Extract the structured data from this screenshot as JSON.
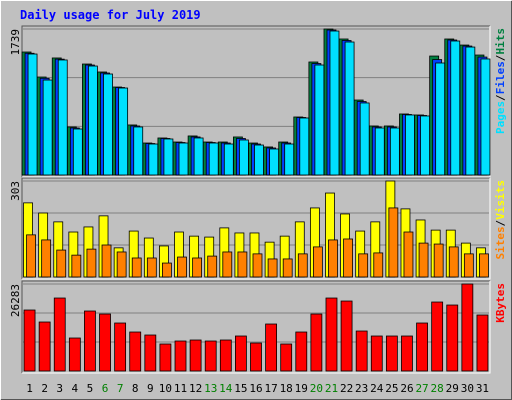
{
  "title": "Daily usage for July 2019",
  "legend_separator": "/",
  "chart_data": [
    {
      "type": "bar",
      "ylim": [
        0,
        1739
      ],
      "yticks": [
        1739
      ],
      "series": [
        {
          "name": "Hits",
          "color": "#008040",
          "values": [
            1465,
            1167,
            1394,
            572,
            1322,
            1227,
            1048,
            596,
            381,
            441,
            393,
            465,
            393,
            393,
            453,
            381,
            334,
            393,
            691,
            1346,
            1739,
            1620,
            893,
            584,
            584,
            727,
            715,
            1417,
            1620,
            1548,
            1429
          ]
        },
        {
          "name": "Files",
          "color": "#0040ff",
          "values": [
            1450,
            1152,
            1380,
            560,
            1310,
            1215,
            1042,
            584,
            375,
            435,
            387,
            453,
            387,
            381,
            435,
            369,
            322,
            381,
            685,
            1328,
            1727,
            1602,
            875,
            572,
            572,
            721,
            709,
            1375,
            1608,
            1536,
            1405
          ]
        },
        {
          "name": "Pages",
          "color": "#00e0ff",
          "values": [
            1441,
            1131,
            1370,
            548,
            1298,
            1203,
            1036,
            572,
            369,
            429,
            381,
            441,
            381,
            369,
            417,
            357,
            310,
            369,
            679,
            1310,
            1715,
            1584,
            858,
            560,
            560,
            715,
            703,
            1334,
            1596,
            1524,
            1382
          ]
        }
      ]
    },
    {
      "type": "bar",
      "ylim": [
        0,
        303
      ],
      "yticks": [
        303
      ],
      "series": [
        {
          "name": "Visits",
          "color": "#ffff00",
          "values": [
            234,
            202,
            174,
            142,
            158,
            193,
            92,
            145,
            123,
            98,
            142,
            129,
            126,
            155,
            139,
            139,
            110,
            129,
            174,
            218,
            265,
            199,
            145,
            174,
            303,
            215,
            180,
            148,
            148,
            107,
            92
          ]
        },
        {
          "name": "Sites",
          "color": "#ff8000",
          "values": [
            133,
            117,
            85,
            69,
            88,
            101,
            79,
            60,
            60,
            44,
            63,
            60,
            66,
            79,
            79,
            73,
            57,
            57,
            73,
            95,
            117,
            120,
            73,
            76,
            218,
            142,
            107,
            104,
            95,
            73,
            73
          ]
        }
      ]
    },
    {
      "type": "bar",
      "ylim": [
        0,
        26283
      ],
      "yticks": [
        26283
      ],
      "categories": [
        1,
        2,
        3,
        4,
        5,
        6,
        7,
        8,
        9,
        10,
        11,
        12,
        13,
        14,
        15,
        16,
        17,
        18,
        19,
        20,
        21,
        22,
        23,
        24,
        25,
        26,
        27,
        28,
        29,
        30,
        31
      ],
      "highlight": [
        6,
        7,
        13,
        14,
        20,
        21,
        27,
        28
      ],
      "highlight_color": "#008000",
      "series": [
        {
          "name": "KBytes",
          "color": "#ff0000",
          "values": [
            18424,
            14800,
            22046,
            9966,
            18120,
            17214,
            14496,
            11778,
            10872,
            8154,
            9060,
            9362,
            9060,
            9362,
            10570,
            8456,
            14194,
            8154,
            11778,
            17214,
            22046,
            21140,
            12080,
            10570,
            10570,
            10570,
            14496,
            20838,
            19932,
            26283,
            16912
          ]
        }
      ]
    }
  ]
}
